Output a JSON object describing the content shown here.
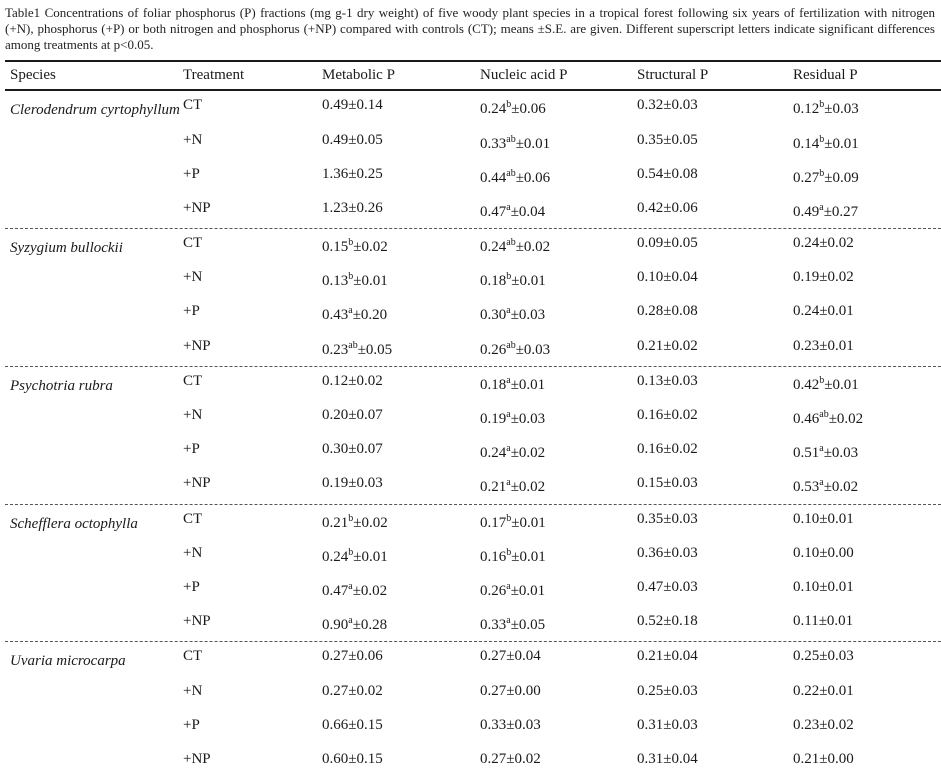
{
  "caption": "Table1 Concentrations of foliar phosphorus (P) fractions (mg g-1 dry weight) of five woody plant species in a tropical forest following six years of fertilization with nitrogen (+N), phosphorus (+P) or both nitrogen and phosphorus (+NP) compared with controls (CT); means ±S.E. are given. Different superscript letters indicate significant differences among treatments at p<0.05.",
  "table": {
    "columns": [
      "Species",
      "Treatment",
      "Metabolic P",
      "Nucleic acid P",
      "Structural P",
      "Residual P"
    ],
    "value_column_keys": [
      "metabolic-p",
      "nucleic-acid-p",
      "structural-p",
      "residual-p"
    ],
    "species_blocks": [
      {
        "species": "Clerodendrum cyrtophyllum",
        "rows": [
          {
            "treatment": "CT",
            "values": [
              {
                "pre": "0.49",
                "sup": "",
                "post": "±0.14"
              },
              {
                "pre": "0.24",
                "sup": "b",
                "post": "±0.06"
              },
              {
                "pre": "0.32",
                "sup": "",
                "post": "±0.03"
              },
              {
                "pre": "0.12",
                "sup": "b",
                "post": "±0.03"
              }
            ]
          },
          {
            "treatment": "+N",
            "values": [
              {
                "pre": "0.49",
                "sup": "",
                "post": "±0.05"
              },
              {
                "pre": "0.33",
                "sup": "ab",
                "post": "±0.01"
              },
              {
                "pre": "0.35",
                "sup": "",
                "post": "±0.05"
              },
              {
                "pre": "0.14",
                "sup": "b",
                "post": "±0.01"
              }
            ]
          },
          {
            "treatment": "+P",
            "values": [
              {
                "pre": "1.36",
                "sup": "",
                "post": "±0.25"
              },
              {
                "pre": "0.44",
                "sup": "ab",
                "post": "±0.06"
              },
              {
                "pre": "0.54",
                "sup": "",
                "post": "±0.08"
              },
              {
                "pre": "0.27",
                "sup": "b",
                "post": "±0.09"
              }
            ]
          },
          {
            "treatment": "+NP",
            "values": [
              {
                "pre": "1.23",
                "sup": "",
                "post": "±0.26"
              },
              {
                "pre": "0.47",
                "sup": "a",
                "post": "±0.04"
              },
              {
                "pre": "0.42",
                "sup": "",
                "post": "±0.06"
              },
              {
                "pre": "0.49",
                "sup": "a",
                "post": "±0.27"
              }
            ]
          }
        ]
      },
      {
        "species": "Syzygium bullockii",
        "rows": [
          {
            "treatment": "CT",
            "values": [
              {
                "pre": "0.15",
                "sup": "b",
                "post": "±0.02"
              },
              {
                "pre": "0.24",
                "sup": "ab",
                "post": "±0.02"
              },
              {
                "pre": "0.09",
                "sup": "",
                "post": "±0.05"
              },
              {
                "pre": "0.24",
                "sup": "",
                "post": "±0.02"
              }
            ]
          },
          {
            "treatment": "+N",
            "values": [
              {
                "pre": "0.13",
                "sup": "b",
                "post": "±0.01"
              },
              {
                "pre": "0.18",
                "sup": "b",
                "post": "±0.01"
              },
              {
                "pre": "0.10",
                "sup": "",
                "post": "±0.04"
              },
              {
                "pre": "0.19",
                "sup": "",
                "post": "±0.02"
              }
            ]
          },
          {
            "treatment": "+P",
            "values": [
              {
                "pre": "0.43",
                "sup": "a",
                "post": "±0.20"
              },
              {
                "pre": "0.30",
                "sup": "a",
                "post": "±0.03"
              },
              {
                "pre": "0.28",
                "sup": "",
                "post": "±0.08"
              },
              {
                "pre": "0.24",
                "sup": "",
                "post": "±0.01"
              }
            ]
          },
          {
            "treatment": "+NP",
            "values": [
              {
                "pre": "0.23",
                "sup": "ab",
                "post": "±0.05"
              },
              {
                "pre": "0.26",
                "sup": "ab",
                "post": "±0.03"
              },
              {
                "pre": "0.21",
                "sup": "",
                "post": "±0.02"
              },
              {
                "pre": "0.23",
                "sup": "",
                "post": "±0.01"
              }
            ]
          }
        ]
      },
      {
        "species": "Psychotria rubra",
        "rows": [
          {
            "treatment": "CT",
            "values": [
              {
                "pre": "0.12",
                "sup": "",
                "post": "±0.02"
              },
              {
                "pre": "0.18",
                "sup": "a",
                "post": "±0.01"
              },
              {
                "pre": "0.13",
                "sup": "",
                "post": "±0.03"
              },
              {
                "pre": "0.42",
                "sup": "b",
                "post": "±0.01"
              }
            ]
          },
          {
            "treatment": "+N",
            "values": [
              {
                "pre": "0.20",
                "sup": "",
                "post": "±0.07"
              },
              {
                "pre": "0.19",
                "sup": "a",
                "post": "±0.03"
              },
              {
                "pre": "0.16",
                "sup": "",
                "post": "±0.02"
              },
              {
                "pre": "0.46",
                "sup": "ab",
                "post": "±0.02"
              }
            ]
          },
          {
            "treatment": "+P",
            "values": [
              {
                "pre": "0.30",
                "sup": "",
                "post": "±0.07"
              },
              {
                "pre": "0.24",
                "sup": "a",
                "post": "±0.02"
              },
              {
                "pre": "0.16",
                "sup": "",
                "post": "±0.02"
              },
              {
                "pre": "0.51",
                "sup": "a",
                "post": "±0.03"
              }
            ]
          },
          {
            "treatment": "+NP",
            "values": [
              {
                "pre": "0.19",
                "sup": "",
                "post": "±0.03"
              },
              {
                "pre": "0.21",
                "sup": "a",
                "post": "±0.02"
              },
              {
                "pre": "0.15",
                "sup": "",
                "post": "±0.03"
              },
              {
                "pre": "0.53",
                "sup": "a",
                "post": "±0.02"
              }
            ]
          }
        ]
      },
      {
        "species": "Schefflera octophylla",
        "rows": [
          {
            "treatment": "CT",
            "values": [
              {
                "pre": "0.21",
                "sup": "b",
                "post": "±0.02"
              },
              {
                "pre": "0.17",
                "sup": "b",
                "post": "±0.01"
              },
              {
                "pre": "0.35",
                "sup": "",
                "post": "±0.03"
              },
              {
                "pre": "0.10",
                "sup": "",
                "post": "±0.01"
              }
            ]
          },
          {
            "treatment": "+N",
            "values": [
              {
                "pre": "0.24",
                "sup": "b",
                "post": "±0.01"
              },
              {
                "pre": "0.16",
                "sup": "b",
                "post": "±0.01"
              },
              {
                "pre": "0.36",
                "sup": "",
                "post": "±0.03"
              },
              {
                "pre": "0.10",
                "sup": "",
                "post": "±0.00"
              }
            ]
          },
          {
            "treatment": "+P",
            "values": [
              {
                "pre": "0.47",
                "sup": "a",
                "post": "±0.02"
              },
              {
                "pre": "0.26",
                "sup": "a",
                "post": "±0.01"
              },
              {
                "pre": "0.47",
                "sup": "",
                "post": "±0.03"
              },
              {
                "pre": "0.10",
                "sup": "",
                "post": "±0.01"
              }
            ]
          },
          {
            "treatment": "+NP",
            "values": [
              {
                "pre": "0.90",
                "sup": "a",
                "post": "±0.28"
              },
              {
                "pre": "0.33",
                "sup": "a",
                "post": "±0.05"
              },
              {
                "pre": "0.52",
                "sup": "",
                "post": "±0.18"
              },
              {
                "pre": "0.11",
                "sup": "",
                "post": "±0.01"
              }
            ]
          }
        ]
      },
      {
        "species": "Uvaria microcarpa",
        "rows": [
          {
            "treatment": "CT",
            "values": [
              {
                "pre": "0.27",
                "sup": "",
                "post": "±0.06"
              },
              {
                "pre": "0.27",
                "sup": "",
                "post": "±0.04"
              },
              {
                "pre": "0.21",
                "sup": "",
                "post": "±0.04"
              },
              {
                "pre": "0.25",
                "sup": "",
                "post": "±0.03"
              }
            ]
          },
          {
            "treatment": "+N",
            "values": [
              {
                "pre": "0.27",
                "sup": "",
                "post": "±0.02"
              },
              {
                "pre": "0.27",
                "sup": "",
                "post": "±0.00"
              },
              {
                "pre": "0.25",
                "sup": "",
                "post": "±0.03"
              },
              {
                "pre": "0.22",
                "sup": "",
                "post": "±0.01"
              }
            ]
          },
          {
            "treatment": "+P",
            "values": [
              {
                "pre": "0.66",
                "sup": "",
                "post": "±0.15"
              },
              {
                "pre": "0.33",
                "sup": "",
                "post": "±0.03"
              },
              {
                "pre": "0.31",
                "sup": "",
                "post": "±0.03"
              },
              {
                "pre": "0.23",
                "sup": "",
                "post": "±0.02"
              }
            ]
          },
          {
            "treatment": "+NP",
            "values": [
              {
                "pre": "0.60",
                "sup": "",
                "post": "±0.15"
              },
              {
                "pre": "0.27",
                "sup": "",
                "post": "±0.02"
              },
              {
                "pre": "0.31",
                "sup": "",
                "post": "±0.04"
              },
              {
                "pre": "0.21",
                "sup": "",
                "post": "±0.00"
              }
            ]
          }
        ]
      }
    ]
  }
}
